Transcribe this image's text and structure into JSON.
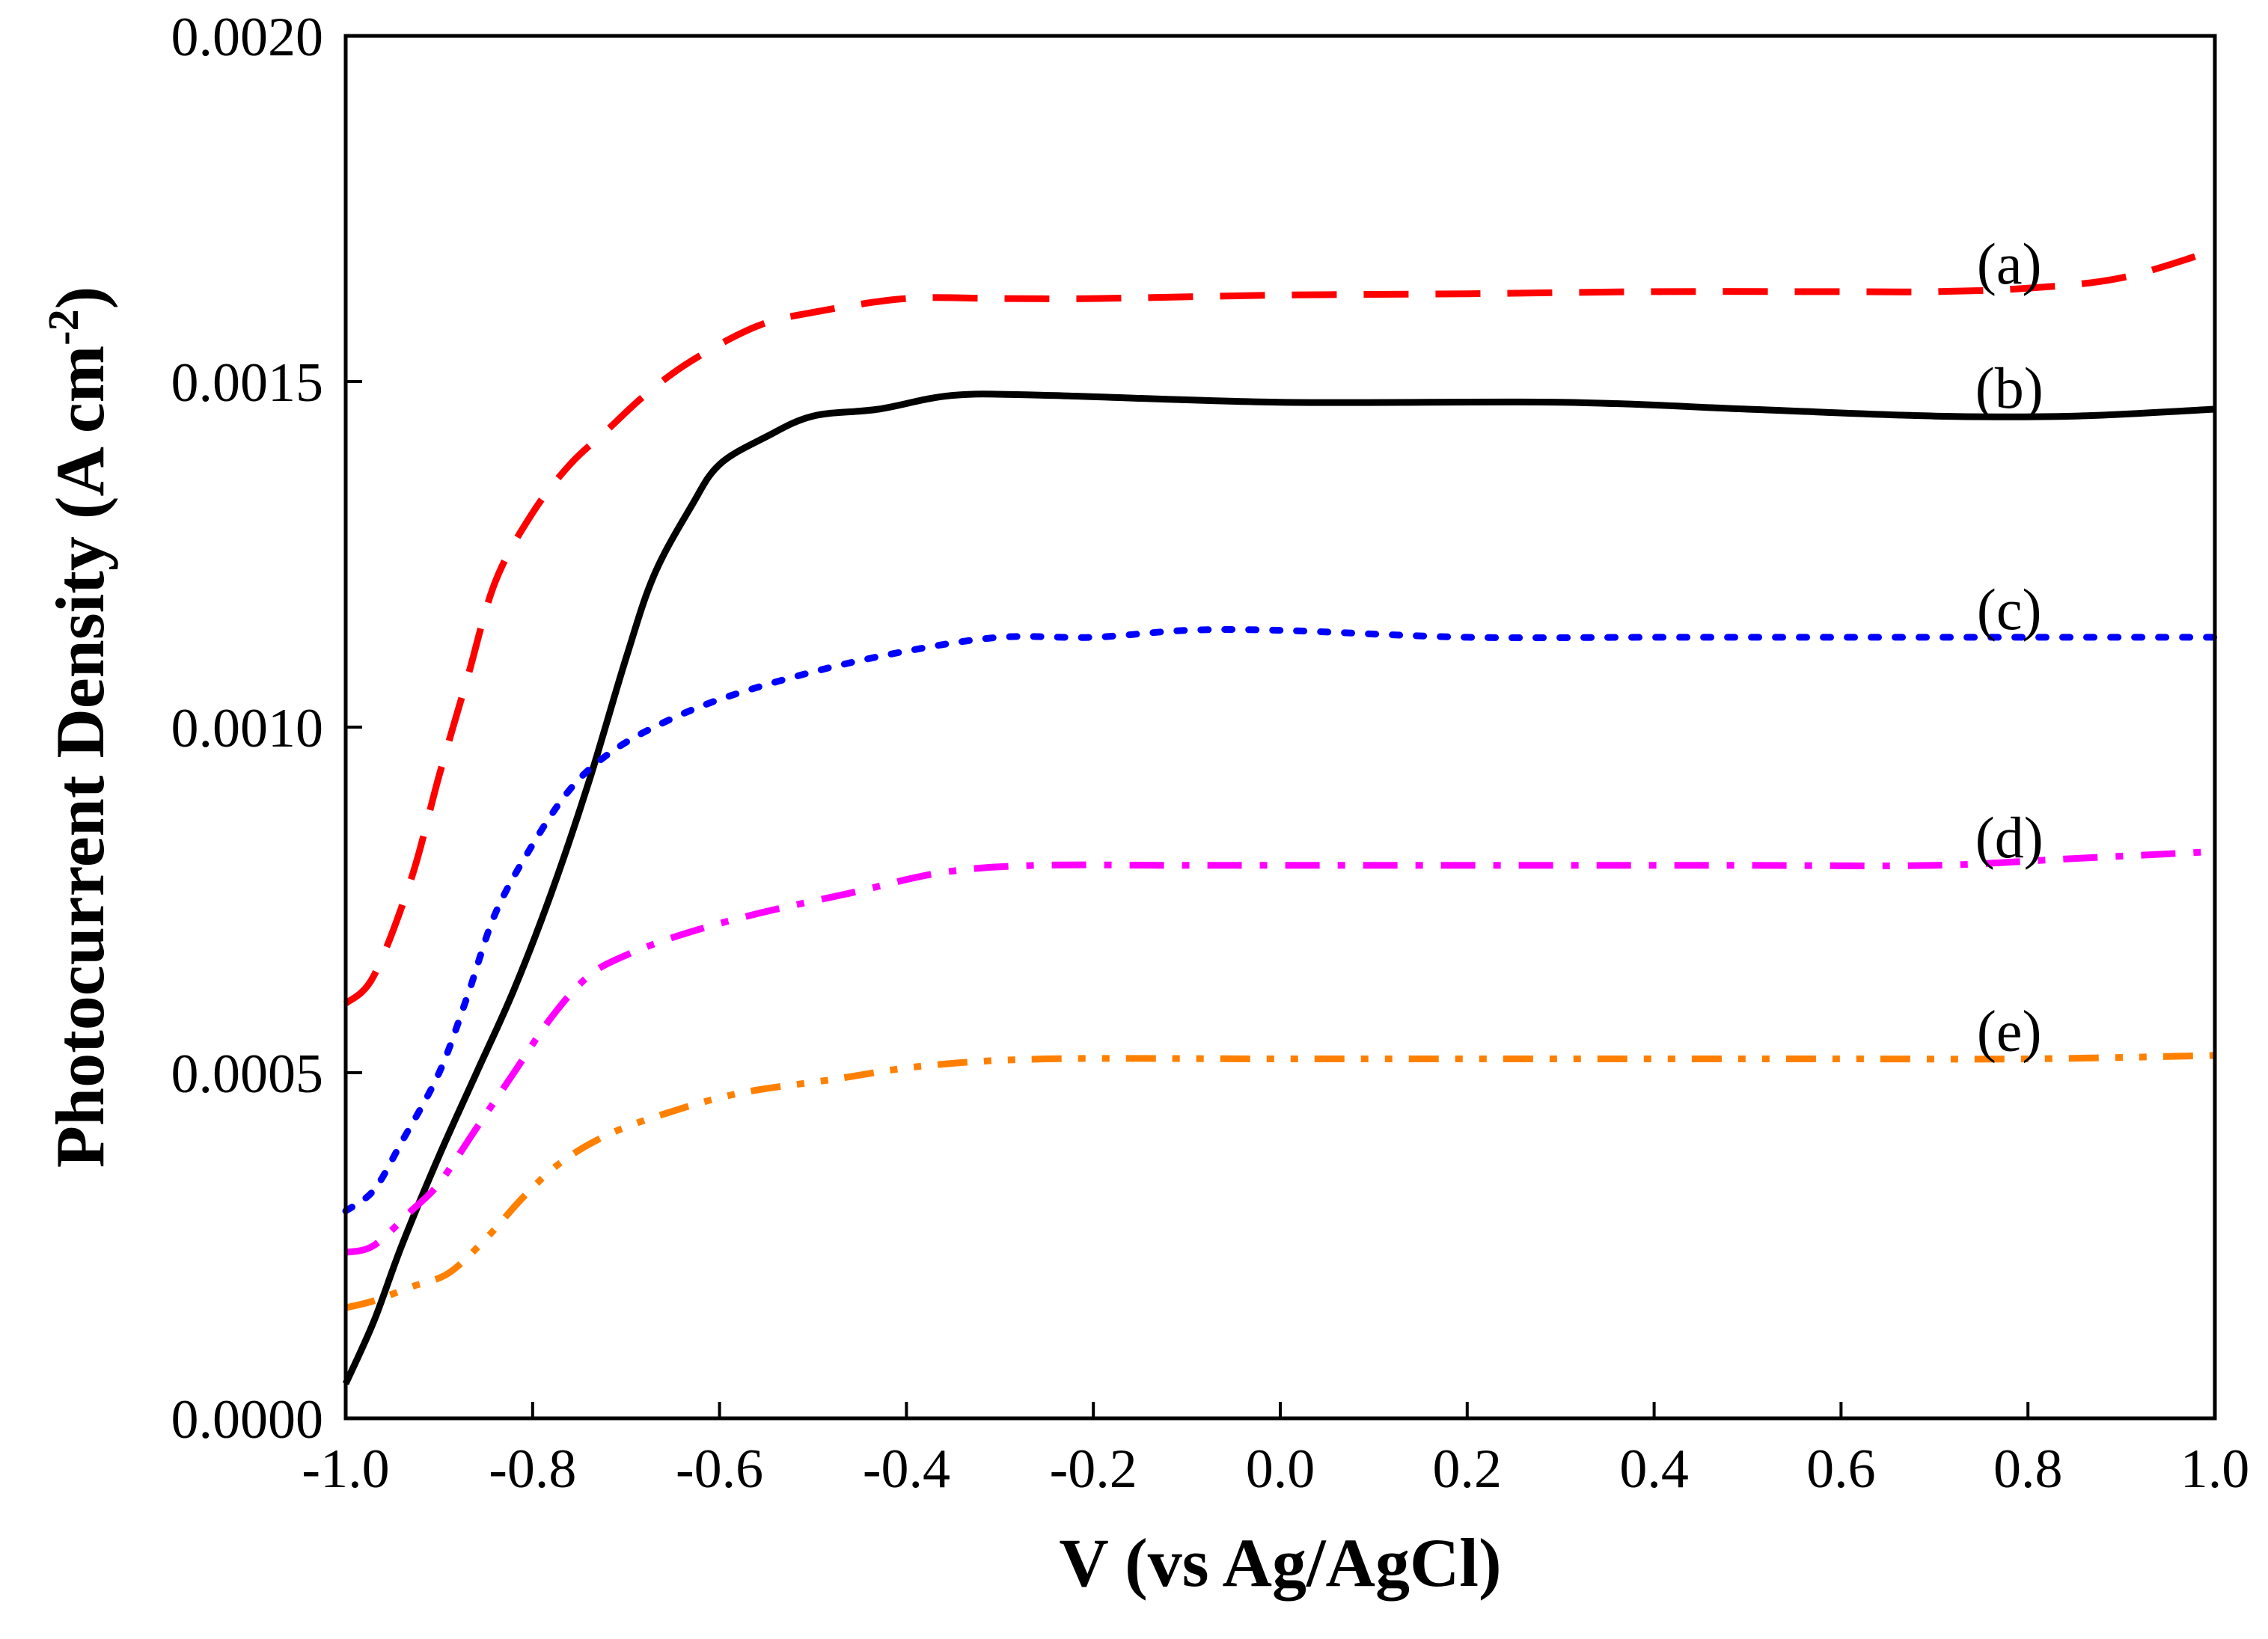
{
  "chart_data": {
    "type": "line",
    "title": "",
    "xlabel": "V (vs Ag/AgCl)",
    "ylabel_main": "Photocurrent Density (A cm",
    "ylabel_sup": "-2",
    "ylabel_close": ")",
    "xlim": [
      -1.0,
      1.0
    ],
    "ylim": [
      0.0,
      0.002
    ],
    "grid": false,
    "xticks": [
      {
        "value": -1.0,
        "label": "-1.0"
      },
      {
        "value": -0.8,
        "label": "-0.8"
      },
      {
        "value": -0.6,
        "label": "-0.6"
      },
      {
        "value": -0.4,
        "label": "-0.4"
      },
      {
        "value": -0.2,
        "label": "-0.2"
      },
      {
        "value": 0.0,
        "label": "0.0"
      },
      {
        "value": 0.2,
        "label": "0.2"
      },
      {
        "value": 0.4,
        "label": "0.4"
      },
      {
        "value": 0.6,
        "label": "0.6"
      },
      {
        "value": 0.8,
        "label": "0.8"
      },
      {
        "value": 1.0,
        "label": "1.0"
      }
    ],
    "yticks": [
      {
        "value": 0.0,
        "label": "0.0000"
      },
      {
        "value": 0.0005,
        "label": "0.0005"
      },
      {
        "value": 0.001,
        "label": "0.0010"
      },
      {
        "value": 0.0015,
        "label": "0.0015"
      },
      {
        "value": 0.002,
        "label": "0.0020"
      }
    ],
    "series": [
      {
        "name": "(a)",
        "color": "#ff0000",
        "style": "dashed",
        "label": {
          "text": "(a)",
          "x": 0.78,
          "y": 0.00167
        },
        "points": [
          [
            -1.0,
            0.0006
          ],
          [
            -0.97,
            0.00064
          ],
          [
            -0.93,
            0.00078
          ],
          [
            -0.9,
            0.00093
          ],
          [
            -0.87,
            0.00107
          ],
          [
            -0.84,
            0.00121
          ],
          [
            -0.8,
            0.00131
          ],
          [
            -0.76,
            0.00138
          ],
          [
            -0.72,
            0.00143
          ],
          [
            -0.68,
            0.00148
          ],
          [
            -0.63,
            0.00153
          ],
          [
            -0.56,
            0.00158
          ],
          [
            -0.5,
            0.0016
          ],
          [
            -0.4,
            0.00162
          ],
          [
            -0.3,
            0.00162
          ],
          [
            -0.2,
            0.00162
          ],
          [
            0.0,
            0.001625
          ],
          [
            0.2,
            0.001627
          ],
          [
            0.4,
            0.00163
          ],
          [
            0.6,
            0.00163
          ],
          [
            0.7,
            0.00163
          ],
          [
            0.8,
            0.001635
          ],
          [
            0.9,
            0.00165
          ],
          [
            1.0,
            0.00169
          ]
        ]
      },
      {
        "name": "(b)",
        "color": "#000000",
        "style": "solid",
        "label": {
          "text": "(b)",
          "x": 0.78,
          "y": 0.00149
        },
        "points": [
          [
            -1.0,
            5e-05
          ],
          [
            -0.97,
            0.00014
          ],
          [
            -0.94,
            0.00025
          ],
          [
            -0.9,
            0.00038
          ],
          [
            -0.86,
            0.0005
          ],
          [
            -0.82,
            0.00062
          ],
          [
            -0.78,
            0.00076
          ],
          [
            -0.74,
            0.00092
          ],
          [
            -0.7,
            0.0011
          ],
          [
            -0.67,
            0.00122
          ],
          [
            -0.63,
            0.00132
          ],
          [
            -0.6,
            0.00138
          ],
          [
            -0.55,
            0.00142
          ],
          [
            -0.5,
            0.00145
          ],
          [
            -0.43,
            0.00146
          ],
          [
            -0.35,
            0.00148
          ],
          [
            -0.25,
            0.00148
          ],
          [
            0.0,
            0.00147
          ],
          [
            0.3,
            0.00147
          ],
          [
            0.5,
            0.00146
          ],
          [
            0.7,
            0.00145
          ],
          [
            0.85,
            0.00145
          ],
          [
            1.0,
            0.00146
          ]
        ]
      },
      {
        "name": "(c)",
        "color": "#0000ff",
        "style": "dotted",
        "label": {
          "text": "(c)",
          "x": 0.78,
          "y": 0.00117
        },
        "points": [
          [
            -1.0,
            0.0003
          ],
          [
            -0.97,
            0.00033
          ],
          [
            -0.94,
            0.0004
          ],
          [
            -0.9,
            0.0005
          ],
          [
            -0.87,
            0.00061
          ],
          [
            -0.84,
            0.00073
          ],
          [
            -0.8,
            0.00083
          ],
          [
            -0.76,
            0.00091
          ],
          [
            -0.72,
            0.00096
          ],
          [
            -0.67,
            0.001
          ],
          [
            -0.6,
            0.00104
          ],
          [
            -0.5,
            0.00108
          ],
          [
            -0.4,
            0.00111
          ],
          [
            -0.3,
            0.00113
          ],
          [
            -0.2,
            0.00113
          ],
          [
            -0.1,
            0.00114
          ],
          [
            0.0,
            0.00114
          ],
          [
            0.2,
            0.00113
          ],
          [
            0.4,
            0.00113
          ],
          [
            0.6,
            0.00113
          ],
          [
            0.8,
            0.00113
          ],
          [
            1.0,
            0.00113
          ]
        ]
      },
      {
        "name": "(d)",
        "color": "#ff00ff",
        "style": "dashdot",
        "label": {
          "text": "(d)",
          "x": 0.78,
          "y": 0.00084
        },
        "points": [
          [
            -1.0,
            0.00024
          ],
          [
            -0.97,
            0.00025
          ],
          [
            -0.93,
            0.0003
          ],
          [
            -0.9,
            0.00034
          ],
          [
            -0.86,
            0.00042
          ],
          [
            -0.82,
            0.0005
          ],
          [
            -0.78,
            0.00058
          ],
          [
            -0.74,
            0.00064
          ],
          [
            -0.7,
            0.00067
          ],
          [
            -0.64,
            0.0007
          ],
          [
            -0.56,
            0.00073
          ],
          [
            -0.46,
            0.00076
          ],
          [
            -0.36,
            0.00079
          ],
          [
            -0.26,
            0.0008
          ],
          [
            -0.1,
            0.0008
          ],
          [
            0.1,
            0.0008
          ],
          [
            0.3,
            0.0008
          ],
          [
            0.5,
            0.0008
          ],
          [
            0.7,
            0.0008
          ],
          [
            0.85,
            0.00081
          ],
          [
            1.0,
            0.00082
          ]
        ]
      },
      {
        "name": "(e)",
        "color": "#ff8000",
        "style": "dashdotdot",
        "label": {
          "text": "(e)",
          "x": 0.78,
          "y": 0.00056
        },
        "points": [
          [
            -1.0,
            0.00016
          ],
          [
            -0.97,
            0.00017
          ],
          [
            -0.93,
            0.00019
          ],
          [
            -0.89,
            0.00021
          ],
          [
            -0.85,
            0.00026
          ],
          [
            -0.81,
            0.00032
          ],
          [
            -0.77,
            0.00037
          ],
          [
            -0.72,
            0.00041
          ],
          [
            -0.66,
            0.00044
          ],
          [
            -0.58,
            0.00047
          ],
          [
            -0.48,
            0.00049
          ],
          [
            -0.38,
            0.00051
          ],
          [
            -0.25,
            0.00052
          ],
          [
            0.0,
            0.00052
          ],
          [
            0.3,
            0.00052
          ],
          [
            0.6,
            0.00052
          ],
          [
            0.8,
            0.00052
          ],
          [
            1.0,
            0.000525
          ]
        ]
      }
    ]
  }
}
